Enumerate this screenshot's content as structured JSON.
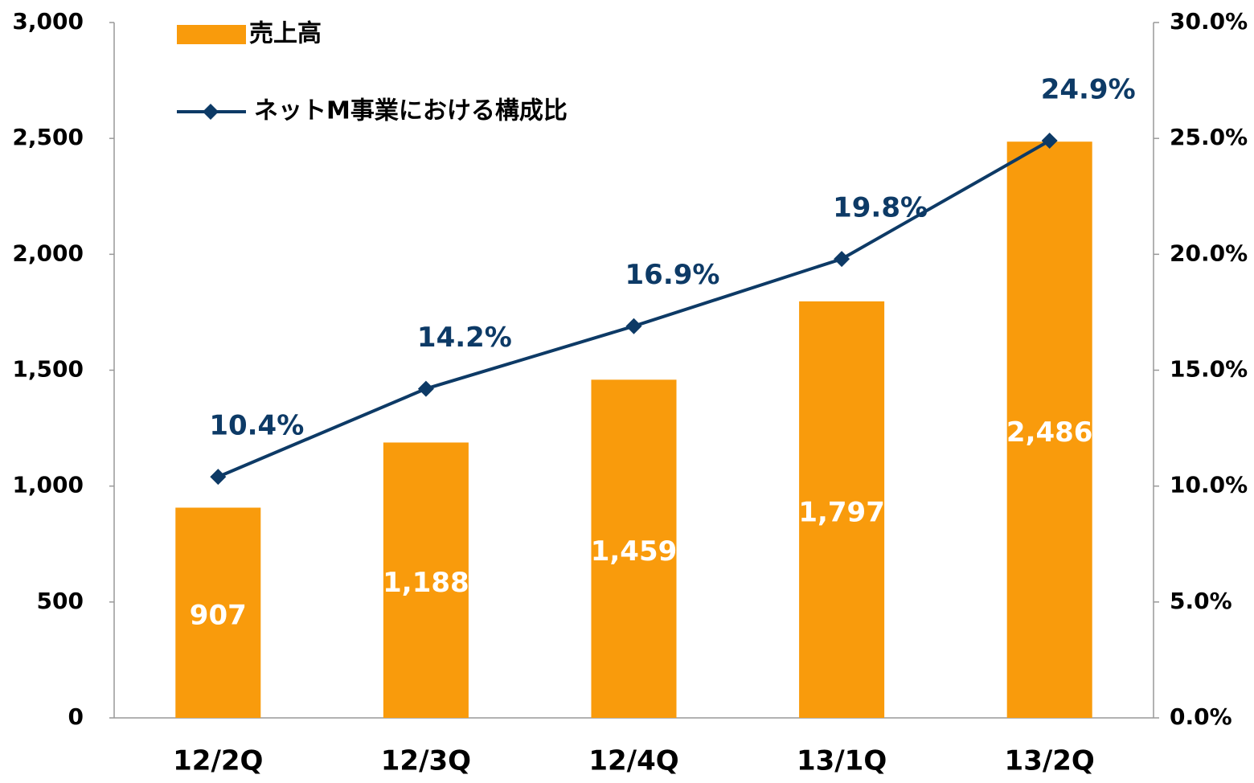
{
  "chart_data": {
    "type": "bar",
    "categories": [
      "12/2Q",
      "12/3Q",
      "12/4Q",
      "13/1Q",
      "13/2Q"
    ],
    "series": [
      {
        "name": "売上高",
        "type": "bar",
        "color": "#f99b0c",
        "values": [
          907,
          1188,
          1459,
          1797,
          2486
        ],
        "value_labels": [
          "907",
          "1,188",
          "1,459",
          "1,797",
          "2,486"
        ]
      },
      {
        "name": "ネットM事業における構成比",
        "type": "line",
        "axis": "y2",
        "color": "#0d3a66",
        "values": [
          10.4,
          14.2,
          16.9,
          19.8,
          24.9
        ],
        "value_labels": [
          "10.4%",
          "14.2%",
          "16.9%",
          "19.8%",
          "24.9%"
        ]
      }
    ],
    "ylim": [
      0,
      3000
    ],
    "yticks": [
      0,
      500,
      {
        "value": 1000,
        "label": "1,000"
      },
      {
        "value": 1500,
        "label": "1,500"
      },
      {
        "value": 2000,
        "label": "2,000"
      },
      {
        "value": 2500,
        "label": "2,500"
      },
      {
        "value": 3000,
        "label": "3,000"
      }
    ],
    "y2lim": [
      0,
      30
    ],
    "y2ticks": [
      {
        "value": 0,
        "label": "0.0%"
      },
      {
        "value": 5,
        "label": "5.0%"
      },
      {
        "value": 10,
        "label": "10.0%"
      },
      {
        "value": 15,
        "label": "15.0%"
      },
      {
        "value": 20,
        "label": "20.0%"
      },
      {
        "value": 25,
        "label": "25.0%"
      },
      {
        "value": 30,
        "label": "30.0%"
      }
    ],
    "grid": false
  }
}
